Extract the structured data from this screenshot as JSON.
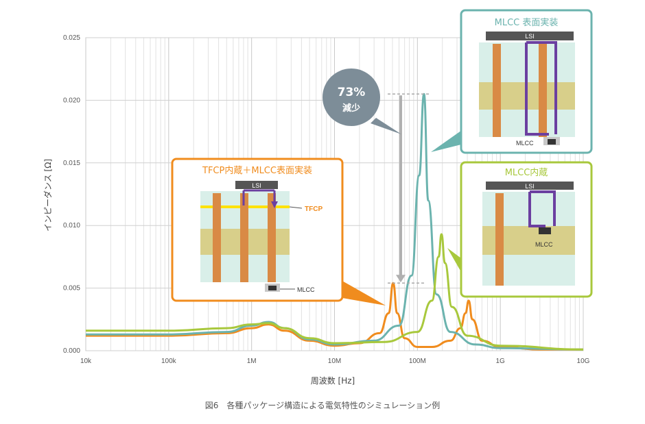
{
  "chart_data": {
    "type": "line",
    "x_scale": "log",
    "xlabel": "周波数 [Hz]",
    "ylabel": "インピーダンス [Ω]",
    "xlim": [
      10000,
      10000000000
    ],
    "ylim": [
      0,
      0.025
    ],
    "x_ticks": [
      {
        "value": 10000,
        "label": "10k"
      },
      {
        "value": 100000,
        "label": "100k"
      },
      {
        "value": 1000000,
        "label": "1M"
      },
      {
        "value": 10000000,
        "label": "10M"
      },
      {
        "value": 100000000,
        "label": "100M"
      },
      {
        "value": 1000000000,
        "label": "1G"
      },
      {
        "value": 10000000000,
        "label": "10G"
      }
    ],
    "y_ticks": [
      {
        "value": 0,
        "label": "0.000"
      },
      {
        "value": 0.005,
        "label": "0.005"
      },
      {
        "value": 0.01,
        "label": "0.010"
      },
      {
        "value": 0.015,
        "label": "0.015"
      },
      {
        "value": 0.02,
        "label": "0.020"
      },
      {
        "value": 0.025,
        "label": "0.025"
      }
    ],
    "grid": true,
    "series": [
      {
        "name": "TFCP内蔵＋MLCC表面実装",
        "color": "#f08c1e",
        "points": [
          [
            10000,
            0.0012
          ],
          [
            100000,
            0.0012
          ],
          [
            500000,
            0.0014
          ],
          [
            1000000,
            0.0018
          ],
          [
            1600000,
            0.0021
          ],
          [
            2500000,
            0.0016
          ],
          [
            5000000,
            0.0008
          ],
          [
            10000000,
            0.0004
          ],
          [
            20000000,
            0.0006
          ],
          [
            35000000,
            0.0014
          ],
          [
            45000000,
            0.003
          ],
          [
            51000000,
            0.0054
          ],
          [
            57000000,
            0.003
          ],
          [
            70000000,
            0.001
          ],
          [
            100000000,
            0.0003
          ],
          [
            150000000,
            0.0003
          ],
          [
            250000000,
            0.0008
          ],
          [
            330000000,
            0.0018
          ],
          [
            380000000,
            0.003
          ],
          [
            415000000,
            0.004
          ],
          [
            460000000,
            0.0025
          ],
          [
            600000000,
            0.0008
          ],
          [
            1000000000,
            0.0003
          ],
          [
            3000000000,
            0.0001
          ],
          [
            10000000000,
            0.0001
          ]
        ]
      },
      {
        "name": "MLCC表面実装",
        "color": "#6bb3ae",
        "points": [
          [
            10000,
            0.0013
          ],
          [
            100000,
            0.0013
          ],
          [
            500000,
            0.0015
          ],
          [
            1000000,
            0.002
          ],
          [
            1600000,
            0.0023
          ],
          [
            2500000,
            0.0018
          ],
          [
            5000000,
            0.0009
          ],
          [
            10000000,
            0.0005
          ],
          [
            30000000,
            0.0008
          ],
          [
            60000000,
            0.002
          ],
          [
            85000000,
            0.006
          ],
          [
            105000000,
            0.014
          ],
          [
            120000000,
            0.0205
          ],
          [
            135000000,
            0.012
          ],
          [
            170000000,
            0.0045
          ],
          [
            250000000,
            0.0015
          ],
          [
            500000000,
            0.0005
          ],
          [
            1000000000,
            0.0002
          ],
          [
            10000000000,
            0.0001
          ]
        ]
      },
      {
        "name": "MLCC内蔵",
        "color": "#a8c83c",
        "points": [
          [
            10000,
            0.0016
          ],
          [
            100000,
            0.0016
          ],
          [
            500000,
            0.0018
          ],
          [
            1000000,
            0.0021
          ],
          [
            1600000,
            0.0022
          ],
          [
            2500000,
            0.0018
          ],
          [
            5000000,
            0.001
          ],
          [
            10000000,
            0.0006
          ],
          [
            40000000,
            0.0007
          ],
          [
            100000000,
            0.0015
          ],
          [
            150000000,
            0.004
          ],
          [
            180000000,
            0.0075
          ],
          [
            195000000,
            0.0093
          ],
          [
            215000000,
            0.007
          ],
          [
            260000000,
            0.0035
          ],
          [
            400000000,
            0.0012
          ],
          [
            1000000000,
            0.0004
          ],
          [
            10000000000,
            0.0001
          ]
        ]
      }
    ],
    "annotations": {
      "reduction_percent": "73%",
      "reduction_word": "減少",
      "peak_from": 0.0205,
      "peak_to": 0.0054
    }
  },
  "boxes": {
    "tfcp": {
      "title": "TFCP内蔵＋MLCC表面実装",
      "color": "#f08c1e",
      "lsi": "LSI",
      "tfcp_label": "TFCP",
      "mlcc_label": "MLCC"
    },
    "mlcc_surface": {
      "title": "MLCC 表面実装",
      "color": "#6bb3ae",
      "lsi": "LSI",
      "mlcc_label": "MLCC"
    },
    "mlcc_embedded": {
      "title": "MLCC内蔵",
      "color": "#a8c83c",
      "lsi": "LSI",
      "mlcc_label": "MLCC"
    }
  },
  "caption": "図6　各種パッケージ構造による電気特性のシミュレーション例"
}
